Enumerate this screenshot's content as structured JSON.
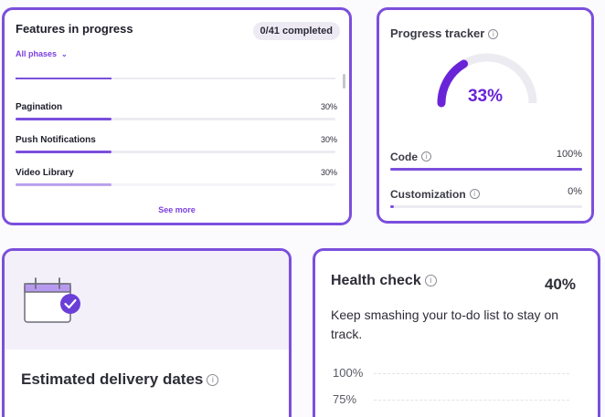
{
  "features": {
    "title": "Features in progress",
    "completed_badge": "0/41 completed",
    "phase_filter": "All phases",
    "items": [
      {
        "name": "Pagination",
        "percent_label": "30%",
        "progress": 0.3
      },
      {
        "name": "Push Notifications",
        "percent_label": "30%",
        "progress": 0.3
      },
      {
        "name": "Video Library",
        "percent_label": "30%",
        "progress": 0.3
      }
    ],
    "see_more": "See more"
  },
  "tracker": {
    "title": "Progress tracker",
    "overall_label": "33%",
    "overall_progress": 0.33,
    "rows": [
      {
        "name": "Code",
        "percent_label": "100%",
        "progress": 1.0
      },
      {
        "name": "Customization",
        "percent_label": "0%",
        "progress": 0.0
      }
    ]
  },
  "delivery": {
    "title": "Estimated delivery dates"
  },
  "health": {
    "title": "Health check",
    "percent_label": "40%",
    "description": "Keep smashing your to-do list to stay on track.",
    "y_ticks": [
      "100%",
      "75%"
    ]
  },
  "colors": {
    "accent": "#7b4fdc",
    "accent_dark": "#6a24d8",
    "track": "#ecebf1"
  }
}
